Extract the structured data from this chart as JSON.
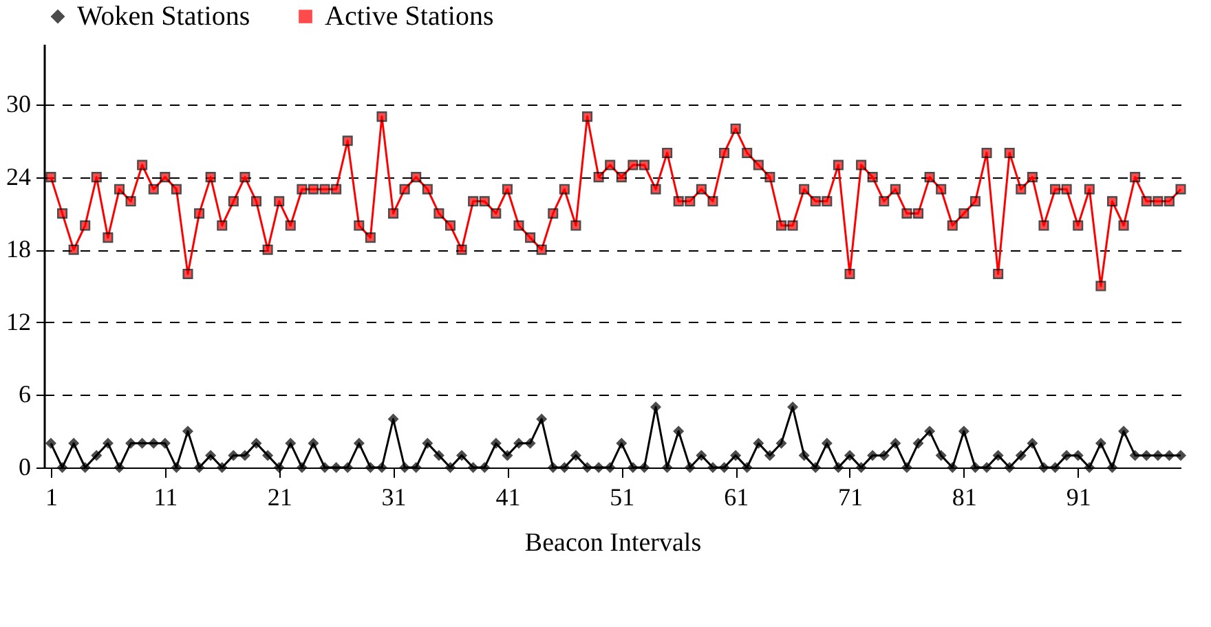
{
  "chart_data": {
    "type": "line",
    "xlabel": "Beacon Intervals",
    "x": [
      1,
      2,
      3,
      4,
      5,
      6,
      7,
      8,
      9,
      10,
      11,
      12,
      13,
      14,
      15,
      16,
      17,
      18,
      19,
      20,
      21,
      22,
      23,
      24,
      25,
      26,
      27,
      28,
      29,
      30,
      31,
      32,
      33,
      34,
      35,
      36,
      37,
      38,
      39,
      40,
      41,
      42,
      43,
      44,
      45,
      46,
      47,
      48,
      49,
      50,
      51,
      52,
      53,
      54,
      55,
      56,
      57,
      58,
      59,
      60,
      61,
      62,
      63,
      64,
      65,
      66,
      67,
      68,
      69,
      70,
      71,
      72,
      73,
      74,
      75,
      76,
      77,
      78,
      79,
      80,
      81,
      82,
      83,
      84,
      85,
      86,
      87,
      88,
      89,
      90,
      91,
      92,
      93,
      94,
      95,
      96,
      97,
      98,
      99,
      100
    ],
    "series": [
      {
        "name": "Woken Stations",
        "color": "#000000",
        "marker": "diamond",
        "values": [
          2,
          0,
          2,
          0,
          1,
          2,
          0,
          2,
          2,
          2,
          2,
          0,
          3,
          0,
          1,
          0,
          1,
          1,
          2,
          1,
          0,
          2,
          0,
          2,
          0,
          0,
          0,
          2,
          0,
          0,
          4,
          0,
          0,
          2,
          1,
          0,
          1,
          0,
          0,
          2,
          1,
          2,
          2,
          4,
          0,
          0,
          1,
          0,
          0,
          0,
          2,
          0,
          0,
          5,
          0,
          3,
          0,
          1,
          0,
          0,
          1,
          0,
          2,
          1,
          2,
          5,
          1,
          0,
          2,
          0,
          1,
          0,
          1,
          1,
          2,
          0,
          2,
          3,
          1,
          0,
          3,
          0,
          0,
          1,
          0,
          1,
          2,
          0,
          0,
          1,
          1,
          0,
          2,
          0,
          3,
          1,
          1,
          1,
          1,
          1
        ]
      },
      {
        "name": "Active Stations",
        "color": "#ff0000",
        "marker": "square",
        "values": [
          24,
          21,
          18,
          20,
          24,
          19,
          23,
          22,
          25,
          23,
          24,
          23,
          16,
          21,
          24,
          20,
          22,
          24,
          22,
          18,
          22,
          20,
          23,
          23,
          23,
          23,
          27,
          20,
          19,
          29,
          21,
          23,
          24,
          23,
          21,
          20,
          18,
          22,
          22,
          21,
          23,
          20,
          19,
          18,
          21,
          23,
          20,
          29,
          24,
          25,
          24,
          25,
          25,
          23,
          26,
          22,
          22,
          23,
          22,
          26,
          28,
          26,
          25,
          24,
          20,
          20,
          23,
          22,
          22,
          25,
          16,
          25,
          24,
          22,
          23,
          21,
          21,
          24,
          23,
          20,
          21,
          22,
          26,
          16,
          26,
          23,
          24,
          20,
          23,
          23,
          20,
          23,
          15,
          22,
          20,
          24,
          22,
          22,
          22,
          23
        ]
      }
    ],
    "xlim": [
      0.4,
      100
    ],
    "xticks": [
      1,
      11,
      21,
      31,
      41,
      51,
      61,
      71,
      81,
      91
    ],
    "ylim": [
      0,
      35
    ],
    "yticks": [
      0,
      6,
      12,
      18,
      24,
      30
    ],
    "grid": "y",
    "legend": "top",
    "line_style": "solid"
  }
}
